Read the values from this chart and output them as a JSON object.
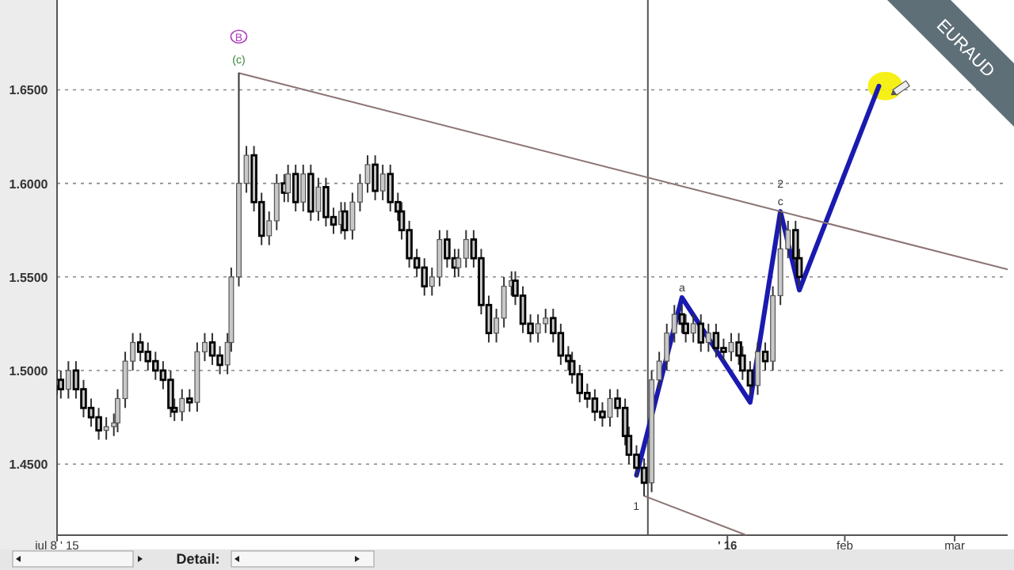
{
  "chart_data": {
    "type": "candlestick",
    "title": "EURAUD",
    "annotations": [
      {
        "text": "B",
        "x": "2015-08-25",
        "y": 1.659
      },
      {
        "text": "(c)",
        "x": "2015-08-25",
        "y": 1.659
      },
      {
        "text": "a",
        "x": "2015-12-20",
        "y": 1.539
      },
      {
        "text": "c",
        "x": "2016-01-15",
        "y": 1.585
      },
      {
        "text": "2",
        "x": "2016-01-15",
        "y": 1.585
      },
      {
        "text": "1",
        "x": "2015-12-10",
        "y": 1.433
      },
      "Detail:"
    ],
    "xlim": [
      "2015-07-08",
      "2016-03-15"
    ],
    "xticks": [
      {
        "value": "2015-07-08",
        "label": "jul 8 ' 15"
      },
      {
        "value": "2016-01-01",
        "label": "' 16"
      },
      {
        "value": "2016-02-01",
        "label": "feb"
      },
      {
        "value": "2016-03-01",
        "label": "mar"
      }
    ],
    "ylim": [
      1.412,
      1.698
    ],
    "yticks": [
      {
        "value": 1.45,
        "label": "1.4500"
      },
      {
        "value": 1.5,
        "label": "1.5000"
      },
      {
        "value": 1.55,
        "label": "1.5500"
      },
      {
        "value": 1.6,
        "label": "1.6000"
      },
      {
        "value": 1.65,
        "label": "1.6500"
      }
    ],
    "grid": "y",
    "ref_lines": [
      {
        "axis": "x",
        "value": "2015-12-11",
        "color": "#555555"
      }
    ],
    "color": "#c8c8c8",
    "x": [
      "2015-07-08",
      "2015-07-09",
      "2015-07-11",
      "2015-07-13",
      "2015-07-15",
      "2015-07-17",
      "2015-07-19",
      "2015-07-21",
      "2015-07-23",
      "2015-07-24",
      "2015-07-26",
      "2015-07-28",
      "2015-07-30",
      "2015-08-01",
      "2015-08-03",
      "2015-08-05",
      "2015-08-07",
      "2015-08-08",
      "2015-08-10",
      "2015-08-12",
      "2015-08-14",
      "2015-08-16",
      "2015-08-18",
      "2015-08-20",
      "2015-08-22",
      "2015-08-23",
      "2015-08-25",
      "2015-08-27",
      "2015-08-29",
      "2015-08-31",
      "2015-09-02",
      "2015-09-04",
      "2015-09-06",
      "2015-09-07",
      "2015-09-09",
      "2015-09-11",
      "2015-09-13",
      "2015-09-15",
      "2015-09-17",
      "2015-09-19",
      "2015-09-21",
      "2015-09-22",
      "2015-09-24",
      "2015-09-26",
      "2015-09-28",
      "2015-09-30",
      "2015-10-02",
      "2015-10-04",
      "2015-10-06",
      "2015-10-07",
      "2015-10-09",
      "2015-10-11",
      "2015-10-13",
      "2015-10-15",
      "2015-10-17",
      "2015-10-19",
      "2015-10-21",
      "2015-10-22",
      "2015-10-24",
      "2015-10-26",
      "2015-10-28",
      "2015-10-30",
      "2015-11-01",
      "2015-11-03",
      "2015-11-05",
      "2015-11-06",
      "2015-11-08",
      "2015-11-10",
      "2015-11-12",
      "2015-11-14",
      "2015-11-16",
      "2015-11-18",
      "2015-11-20",
      "2015-11-21",
      "2015-11-23",
      "2015-11-25",
      "2015-11-27",
      "2015-11-29",
      "2015-12-01",
      "2015-12-03",
      "2015-12-05",
      "2015-12-06",
      "2015-12-08",
      "2015-12-10",
      "2015-12-12",
      "2015-12-14",
      "2015-12-16",
      "2015-12-18",
      "2015-12-20",
      "2015-12-21",
      "2015-12-23",
      "2015-12-25",
      "2015-12-27",
      "2015-12-29",
      "2015-12-31",
      "2016-01-02",
      "2016-01-04",
      "2016-01-05",
      "2016-01-07",
      "2016-01-09",
      "2016-01-11",
      "2016-01-13",
      "2016-01-15",
      "2016-01-17",
      "2016-01-19",
      "2016-01-20"
    ],
    "ohlc": [
      [
        1.492,
        1.5,
        1.487,
        1.495
      ],
      [
        1.495,
        1.5,
        1.485,
        1.49
      ],
      [
        1.49,
        1.505,
        1.485,
        1.5
      ],
      [
        1.5,
        1.505,
        1.485,
        1.49
      ],
      [
        1.49,
        1.495,
        1.475,
        1.48
      ],
      [
        1.48,
        1.485,
        1.47,
        1.475
      ],
      [
        1.475,
        1.48,
        1.463,
        1.468
      ],
      [
        1.468,
        1.475,
        1.463,
        1.47
      ],
      [
        1.47,
        1.477,
        1.465,
        1.472
      ],
      [
        1.472,
        1.49,
        1.467,
        1.485
      ],
      [
        1.485,
        1.51,
        1.48,
        1.505
      ],
      [
        1.505,
        1.52,
        1.5,
        1.515
      ],
      [
        1.515,
        1.52,
        1.505,
        1.51
      ],
      [
        1.51,
        1.515,
        1.5,
        1.505
      ],
      [
        1.505,
        1.51,
        1.495,
        1.5
      ],
      [
        1.5,
        1.505,
        1.49,
        1.495
      ],
      [
        1.495,
        1.5,
        1.475,
        1.48
      ],
      [
        1.48,
        1.485,
        1.473,
        1.478
      ],
      [
        1.478,
        1.49,
        1.473,
        1.485
      ],
      [
        1.485,
        1.49,
        1.478,
        1.483
      ],
      [
        1.483,
        1.515,
        1.478,
        1.51
      ],
      [
        1.51,
        1.52,
        1.505,
        1.515
      ],
      [
        1.515,
        1.52,
        1.503,
        1.508
      ],
      [
        1.508,
        1.513,
        1.498,
        1.503
      ],
      [
        1.503,
        1.52,
        1.498,
        1.515
      ],
      [
        1.515,
        1.555,
        1.51,
        1.55
      ],
      [
        1.55,
        1.659,
        1.545,
        1.6
      ],
      [
        1.6,
        1.62,
        1.595,
        1.615
      ],
      [
        1.615,
        1.62,
        1.585,
        1.59
      ],
      [
        1.59,
        1.595,
        1.567,
        1.572
      ],
      [
        1.572,
        1.585,
        1.567,
        1.58
      ],
      [
        1.58,
        1.605,
        1.575,
        1.6
      ],
      [
        1.6,
        1.605,
        1.59,
        1.595
      ],
      [
        1.595,
        1.61,
        1.59,
        1.605
      ],
      [
        1.605,
        1.61,
        1.585,
        1.59
      ],
      [
        1.59,
        1.61,
        1.585,
        1.605
      ],
      [
        1.605,
        1.61,
        1.58,
        1.585
      ],
      [
        1.585,
        1.603,
        1.58,
        1.598
      ],
      [
        1.598,
        1.603,
        1.577,
        1.582
      ],
      [
        1.582,
        1.587,
        1.573,
        1.578
      ],
      [
        1.578,
        1.59,
        1.573,
        1.585
      ],
      [
        1.585,
        1.59,
        1.57,
        1.575
      ],
      [
        1.575,
        1.595,
        1.57,
        1.59
      ],
      [
        1.59,
        1.605,
        1.585,
        1.6
      ],
      [
        1.6,
        1.615,
        1.595,
        1.61
      ],
      [
        1.61,
        1.615,
        1.591,
        1.596
      ],
      [
        1.596,
        1.61,
        1.591,
        1.605
      ],
      [
        1.605,
        1.61,
        1.585,
        1.59
      ],
      [
        1.59,
        1.595,
        1.58,
        1.585
      ],
      [
        1.585,
        1.59,
        1.57,
        1.575
      ],
      [
        1.575,
        1.58,
        1.555,
        1.56
      ],
      [
        1.56,
        1.565,
        1.55,
        1.555
      ],
      [
        1.555,
        1.56,
        1.54,
        1.545
      ],
      [
        1.545,
        1.555,
        1.54,
        1.55
      ],
      [
        1.55,
        1.575,
        1.545,
        1.57
      ],
      [
        1.57,
        1.575,
        1.555,
        1.56
      ],
      [
        1.56,
        1.565,
        1.55,
        1.555
      ],
      [
        1.555,
        1.565,
        1.55,
        1.56
      ],
      [
        1.56,
        1.575,
        1.555,
        1.57
      ],
      [
        1.57,
        1.575,
        1.555,
        1.56
      ],
      [
        1.56,
        1.565,
        1.53,
        1.535
      ],
      [
        1.535,
        1.54,
        1.515,
        1.52
      ],
      [
        1.52,
        1.533,
        1.515,
        1.528
      ],
      [
        1.528,
        1.55,
        1.523,
        1.545
      ],
      [
        1.545,
        1.553,
        1.54,
        1.548
      ],
      [
        1.548,
        1.553,
        1.535,
        1.54
      ],
      [
        1.54,
        1.545,
        1.52,
        1.525
      ],
      [
        1.525,
        1.53,
        1.515,
        1.52
      ],
      [
        1.52,
        1.53,
        1.515,
        1.525
      ],
      [
        1.525,
        1.533,
        1.52,
        1.528
      ],
      [
        1.528,
        1.533,
        1.515,
        1.52
      ],
      [
        1.52,
        1.525,
        1.503,
        1.508
      ],
      [
        1.508,
        1.513,
        1.5,
        1.505
      ],
      [
        1.505,
        1.51,
        1.493,
        1.498
      ],
      [
        1.498,
        1.503,
        1.483,
        1.488
      ],
      [
        1.488,
        1.493,
        1.48,
        1.485
      ],
      [
        1.485,
        1.49,
        1.473,
        1.478
      ],
      [
        1.478,
        1.483,
        1.47,
        1.475
      ],
      [
        1.475,
        1.49,
        1.47,
        1.485
      ],
      [
        1.485,
        1.49,
        1.475,
        1.48
      ],
      [
        1.48,
        1.485,
        1.46,
        1.465
      ],
      [
        1.465,
        1.47,
        1.45,
        1.455
      ],
      [
        1.455,
        1.46,
        1.443,
        1.448
      ],
      [
        1.448,
        1.453,
        1.433,
        1.44
      ],
      [
        1.44,
        1.5,
        1.435,
        1.495
      ],
      [
        1.495,
        1.51,
        1.49,
        1.505
      ],
      [
        1.505,
        1.525,
        1.5,
        1.52
      ],
      [
        1.52,
        1.535,
        1.515,
        1.53
      ],
      [
        1.53,
        1.535,
        1.52,
        1.525
      ],
      [
        1.525,
        1.53,
        1.515,
        1.52
      ],
      [
        1.52,
        1.53,
        1.515,
        1.525
      ],
      [
        1.525,
        1.53,
        1.51,
        1.515
      ],
      [
        1.515,
        1.525,
        1.51,
        1.52
      ],
      [
        1.52,
        1.525,
        1.507,
        1.512
      ],
      [
        1.512,
        1.517,
        1.505,
        1.51
      ],
      [
        1.51,
        1.52,
        1.505,
        1.515
      ],
      [
        1.515,
        1.52,
        1.503,
        1.508
      ],
      [
        1.508,
        1.513,
        1.495,
        1.5
      ],
      [
        1.5,
        1.505,
        1.487,
        1.492
      ],
      [
        1.492,
        1.515,
        1.487,
        1.51
      ],
      [
        1.51,
        1.515,
        1.5,
        1.505
      ],
      [
        1.505,
        1.545,
        1.5,
        1.54
      ],
      [
        1.54,
        1.585,
        1.535,
        1.565
      ],
      [
        1.565,
        1.58,
        1.56,
        1.575
      ],
      [
        1.575,
        1.58,
        1.555,
        1.56
      ],
      [
        1.56,
        1.565,
        1.545,
        1.55
      ]
    ],
    "series": [
      {
        "type": "line",
        "color": "#1a1ab0",
        "x": [
          "2015-12-08",
          "2015-12-20",
          "2016-01-07",
          "2016-01-15",
          "2016-01-20",
          "2016-02-10"
        ],
        "values": [
          1.444,
          1.539,
          1.483,
          1.585,
          1.543,
          1.652
        ]
      },
      {
        "type": "line",
        "color": "#8c7373",
        "x": [
          "2015-08-25",
          "2016-03-15"
        ],
        "values": [
          1.659,
          1.554
        ]
      },
      {
        "type": "line",
        "color": "#8c7373",
        "x": [
          "2015-12-10",
          "2016-01-06"
        ],
        "values": [
          1.433,
          1.412
        ]
      }
    ]
  }
}
